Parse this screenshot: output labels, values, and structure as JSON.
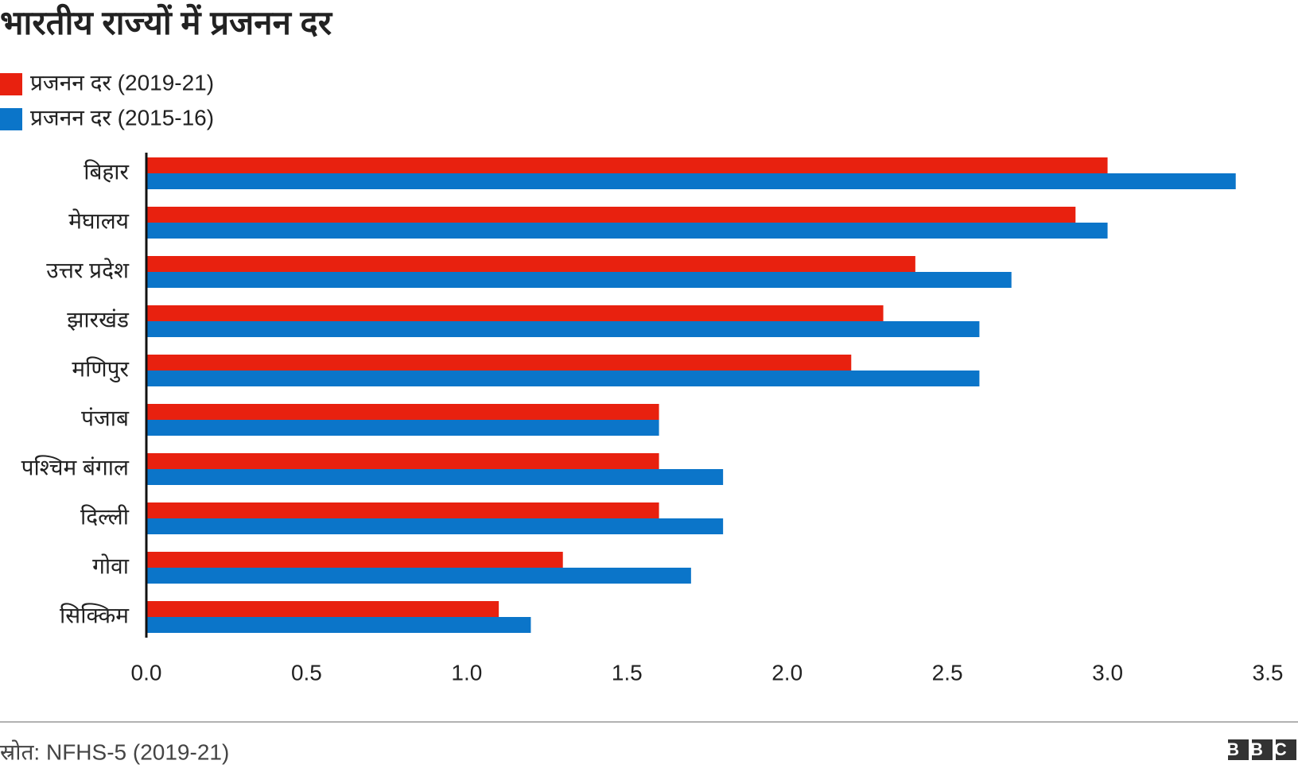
{
  "chart_data": {
    "type": "bar",
    "title": "भारतीय राज्यों में प्रजनन दर",
    "categories": [
      "बिहार",
      "मेघालय",
      "उत्तर प्रदेश",
      "झारखंड",
      "मणिपुर",
      "पंजाब",
      "पश्चिम बंगाल",
      "दिल्ली",
      "गोवा",
      "सिक्किम"
    ],
    "series": [
      {
        "name": "प्रजनन दर (2019-21)",
        "color": "#e8210f",
        "values": [
          3.0,
          2.9,
          2.4,
          2.3,
          2.2,
          1.6,
          1.6,
          1.6,
          1.3,
          1.1
        ]
      },
      {
        "name": "प्रजनन दर (2015-16)",
        "color": "#0b75c9",
        "values": [
          3.4,
          3.0,
          2.7,
          2.6,
          2.6,
          1.6,
          1.8,
          1.8,
          1.7,
          1.2
        ]
      }
    ],
    "xlim": [
      0,
      3.5
    ],
    "xticks": [
      {
        "value": 0,
        "label": "0.0"
      },
      0.5,
      {
        "value": 1,
        "label": "1.0"
      },
      1.5,
      {
        "value": 2,
        "label": "2.0"
      },
      2.5,
      {
        "value": 3,
        "label": "3.0"
      },
      3.5
    ],
    "source": "स्रोत: NFHS-5 (2019-21)",
    "logo": "BBC"
  }
}
